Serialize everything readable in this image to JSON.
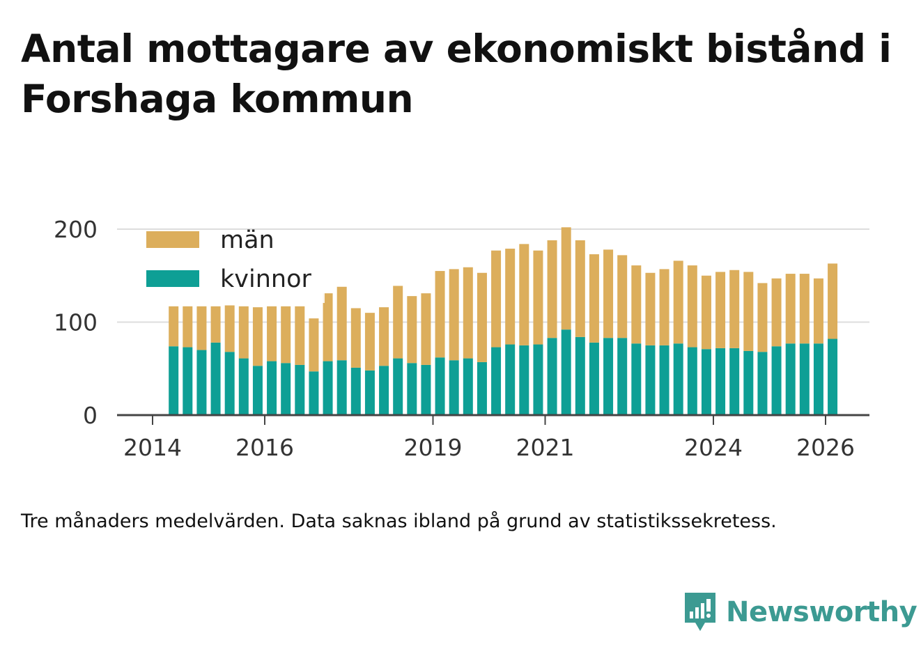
{
  "title": "Antal mottagare av ekonomiskt bistånd i Forshaga kommun",
  "note": "Tre månaders medelvärden. Data saknas ibland på grund av statistikssekretess.",
  "brand": {
    "name": "Newsworthy",
    "icon": "newsworthy-logo-icon",
    "color": "#3c9a92"
  },
  "colors": {
    "men": "#dcae5c",
    "women": "#0e9f95",
    "grid": "#dddddd",
    "axis": "#444444"
  },
  "chart_data": {
    "type": "bar",
    "stacked": true,
    "title": "Antal mottagare av ekonomiskt bistånd i Forshaga kommun",
    "xlabel": "",
    "ylabel": "",
    "ylim": [
      0,
      200
    ],
    "yticks": [
      0,
      100,
      200
    ],
    "xlim": [
      2014,
      2026.4
    ],
    "xticks": [
      2014,
      2016,
      2019,
      2021,
      2024,
      2026
    ],
    "legend": {
      "position": "top-left",
      "entries": [
        "män",
        "kvinnor"
      ]
    },
    "x": [
      2014.375,
      2014.625,
      2014.875,
      2015.125,
      2015.375,
      2015.625,
      2015.875,
      2016.125,
      2016.375,
      2016.625,
      2016.875,
      2017.125,
      2017.375,
      2017.625,
      2017.875,
      2018.125,
      2018.375,
      2018.625,
      2018.875,
      2019.125,
      2019.375,
      2019.625,
      2019.875,
      2020.125,
      2020.375,
      2020.625,
      2020.875,
      2021.125,
      2021.375,
      2021.625,
      2021.875,
      2022.125,
      2022.375,
      2022.625,
      2022.875,
      2023.125,
      2023.375,
      2023.625,
      2023.875,
      2024.125,
      2024.375,
      2024.625,
      2024.875,
      2025.125,
      2025.375,
      2025.625,
      2025.875,
      2026.125
    ],
    "series": [
      {
        "name": "kvinnor",
        "values": [
          74,
          73,
          70,
          78,
          68,
          61,
          53,
          58,
          56,
          54,
          47,
          58,
          59,
          51,
          48,
          53,
          61,
          56,
          54,
          62,
          59,
          61,
          57,
          73,
          76,
          75,
          76,
          83,
          92,
          84,
          78,
          83,
          83,
          77,
          75,
          75,
          77,
          73,
          71,
          72,
          72,
          69,
          68,
          74,
          77,
          77,
          77,
          82
        ]
      },
      {
        "name": "män",
        "values": [
          43,
          44,
          47,
          39,
          50,
          56,
          63,
          59,
          61,
          63,
          57,
          73,
          79,
          64,
          62,
          63,
          78,
          72,
          77,
          93,
          98,
          98,
          96,
          104,
          103,
          109,
          101,
          105,
          110,
          104,
          95,
          95,
          89,
          84,
          78,
          82,
          89,
          88,
          79,
          82,
          84,
          85,
          74,
          73,
          75,
          75,
          70,
          81
        ]
      }
    ]
  }
}
